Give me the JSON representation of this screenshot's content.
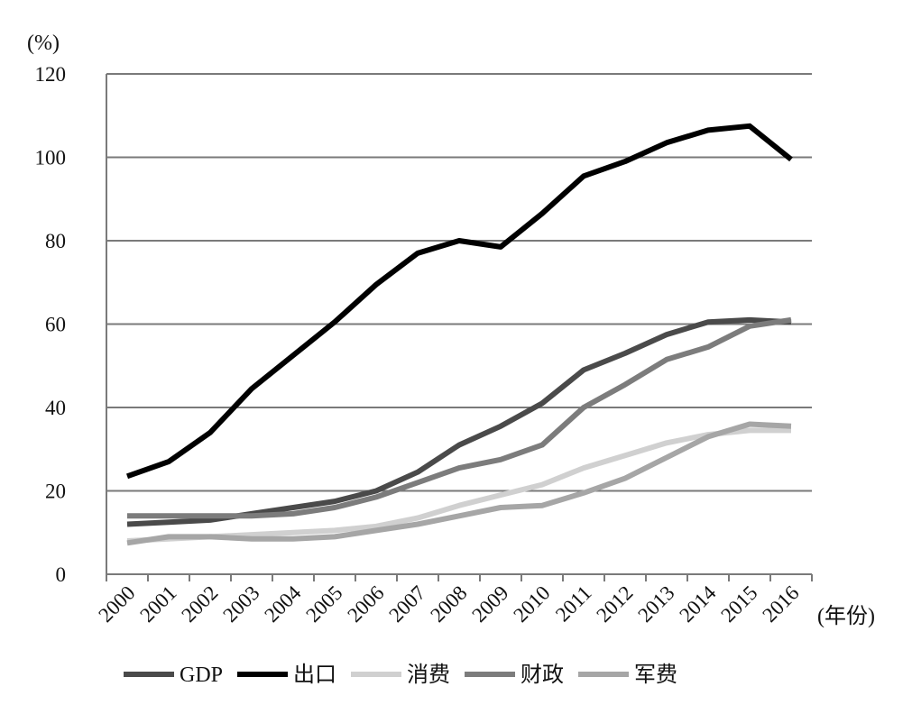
{
  "chart_data": {
    "type": "line",
    "title": "",
    "ylabel": "(%)",
    "xlabel": "(年份)",
    "ylim": [
      0,
      120
    ],
    "yticks": [
      "0",
      "20",
      "40",
      "60",
      "80",
      "100",
      "120"
    ],
    "grid": true,
    "legend_position": "bottom",
    "categories": [
      "2000",
      "2001",
      "2002",
      "2003",
      "2004",
      "2005",
      "2006",
      "2007",
      "2008",
      "2009",
      "2010",
      "2011",
      "2012",
      "2013",
      "2014",
      "2015",
      "2016"
    ],
    "series": [
      {
        "name": "GDP",
        "color": "#4a4a4a",
        "values": [
          12,
          12.5,
          13,
          14.5,
          16,
          17.5,
          20,
          24.5,
          31,
          35.5,
          41,
          49,
          53,
          57.5,
          60.5,
          61,
          60.5
        ]
      },
      {
        "name": "出口",
        "color": "#000000",
        "values": [
          23.5,
          27,
          34,
          44.5,
          52.5,
          60.5,
          69.5,
          77,
          80,
          78.5,
          86.5,
          95.5,
          99,
          103.5,
          106.5,
          107.5,
          99.5
        ]
      },
      {
        "name": "消费",
        "color": "#d0d0d0",
        "values": [
          8,
          8.5,
          9,
          9.5,
          10,
          10.5,
          11.5,
          13.5,
          16.5,
          19,
          21.5,
          25.5,
          28.5,
          31.5,
          33.5,
          34.5,
          34.5
        ]
      },
      {
        "name": "财政",
        "color": "#7c7c7c",
        "values": [
          14,
          14,
          14,
          14,
          14.5,
          16,
          18.5,
          22,
          25.5,
          27.5,
          31,
          40,
          45.5,
          51.5,
          54.5,
          59.5,
          61
        ]
      },
      {
        "name": "军费",
        "color": "#a6a6a6",
        "values": [
          7.5,
          9,
          9,
          8.5,
          8.5,
          9,
          10.5,
          12,
          14,
          16,
          16.5,
          19.5,
          23,
          28,
          33,
          36,
          35.5
        ]
      }
    ]
  }
}
